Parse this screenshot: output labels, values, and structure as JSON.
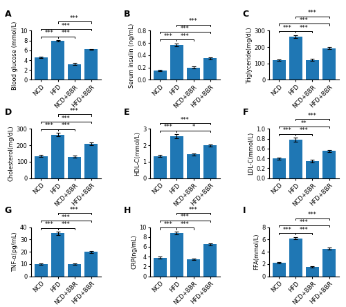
{
  "chart_data": [
    {
      "type": "bar",
      "title": "A",
      "y_label": "Blood glucose (mmol/L)",
      "categories": [
        "NCD",
        "HFD",
        "NCD+BBR",
        "HFD+BBR"
      ],
      "values": [
        4.6,
        7.9,
        3.2,
        6.2
      ],
      "errors": [
        0.15,
        0.12,
        0.18,
        0.12
      ],
      "ylim": [
        0,
        10
      ],
      "yticks": [
        0,
        2,
        4,
        6,
        8,
        10
      ],
      "grid": false,
      "annotations": [
        {
          "from": "NCD",
          "to": "HFD",
          "text": "***"
        },
        {
          "from": "HFD",
          "to": "NCD+BBR",
          "text": "***"
        },
        {
          "from": "NCD",
          "to": "HFD+BBR",
          "text": "***"
        },
        {
          "from": "HFD",
          "to": "HFD+BBR",
          "text": "***"
        }
      ]
    },
    {
      "type": "bar",
      "title": "B",
      "y_label": "Serum insulin (ng/mL)",
      "categories": [
        "NCD",
        "HFD",
        "NCD+BBR",
        "HFD+BBR"
      ],
      "values": [
        0.15,
        0.57,
        0.2,
        0.35
      ],
      "errors": [
        0.015,
        0.025,
        0.015,
        0.015
      ],
      "ylim": [
        0,
        0.8
      ],
      "yticks": [
        0.0,
        0.2,
        0.4,
        0.6,
        0.8
      ],
      "grid": false,
      "annotations": [
        {
          "from": "NCD",
          "to": "HFD",
          "text": "***"
        },
        {
          "from": "HFD",
          "to": "NCD+BBR",
          "text": "***"
        },
        {
          "from": "NCD",
          "to": "HFD+BBR",
          "text": "***"
        },
        {
          "from": "HFD",
          "to": "HFD+BBR",
          "text": "***"
        }
      ]
    },
    {
      "type": "bar",
      "title": "C",
      "y_label": "Triglyceride(mg/dL)",
      "categories": [
        "NCD",
        "HFD",
        "NCD+BBR",
        "HFD+BBR"
      ],
      "values": [
        120,
        265,
        122,
        193
      ],
      "errors": [
        5,
        8,
        6,
        7
      ],
      "ylim": [
        0,
        300
      ],
      "yticks": [
        0,
        100,
        200,
        300
      ],
      "grid": false,
      "annotations": [
        {
          "from": "NCD",
          "to": "HFD",
          "text": "***"
        },
        {
          "from": "HFD",
          "to": "NCD+BBR",
          "text": "***"
        },
        {
          "from": "NCD",
          "to": "HFD+BBR",
          "text": "***"
        },
        {
          "from": "HFD",
          "to": "HFD+BBR",
          "text": "***"
        }
      ]
    },
    {
      "type": "bar",
      "title": "D",
      "y_label": "Cholesterol(mg/dL)",
      "categories": [
        "NCD",
        "HFD",
        "NCD+BBR",
        "HFD+BBR"
      ],
      "values": [
        135,
        265,
        130,
        210
      ],
      "errors": [
        8,
        10,
        7,
        8
      ],
      "ylim": [
        0,
        300
      ],
      "yticks": [
        0,
        100,
        200,
        300
      ],
      "grid": false,
      "annotations": [
        {
          "from": "NCD",
          "to": "HFD",
          "text": "***"
        },
        {
          "from": "HFD",
          "to": "NCD+BBR",
          "text": "***"
        },
        {
          "from": "NCD",
          "to": "HFD+BBR",
          "text": "***"
        },
        {
          "from": "HFD",
          "to": "HFD+BBR",
          "text": "***"
        }
      ]
    },
    {
      "type": "bar",
      "title": "E",
      "y_label": "HDL-C(mmol/L)",
      "categories": [
        "NCD",
        "HFD",
        "NCD+BBR",
        "HFD+BBR"
      ],
      "values": [
        1.35,
        2.55,
        1.45,
        2.0
      ],
      "errors": [
        0.07,
        0.12,
        0.07,
        0.07
      ],
      "ylim": [
        0,
        3
      ],
      "yticks": [
        0,
        1,
        2,
        3
      ],
      "grid": false,
      "annotations": [
        {
          "from": "NCD",
          "to": "HFD",
          "text": "***"
        },
        {
          "from": "HFD",
          "to": "HFD+BBR",
          "text": "*"
        },
        {
          "from": "NCD",
          "to": "HFD+BBR",
          "text": "***"
        }
      ]
    },
    {
      "type": "bar",
      "title": "F",
      "y_label": "LDL-C(mmol/L)",
      "categories": [
        "NCD",
        "HFD",
        "NCD+BBR",
        "HFD+BBR"
      ],
      "values": [
        0.4,
        0.78,
        0.35,
        0.55
      ],
      "errors": [
        0.02,
        0.04,
        0.03,
        0.025
      ],
      "ylim": [
        0,
        1.0
      ],
      "yticks": [
        0.0,
        0.2,
        0.4,
        0.6,
        0.8,
        1.0
      ],
      "grid": false,
      "annotations": [
        {
          "from": "NCD",
          "to": "HFD",
          "text": "***"
        },
        {
          "from": "HFD",
          "to": "NCD+BBR",
          "text": "***"
        },
        {
          "from": "NCD",
          "to": "HFD+BBR",
          "text": "**"
        },
        {
          "from": "HFD",
          "to": "HFD+BBR",
          "text": "***"
        }
      ]
    },
    {
      "type": "bar",
      "title": "G",
      "y_label": "TNF-α(pg/mL)",
      "categories": [
        "NCD",
        "HFD",
        "NCD+BBR",
        "HFD+BBR"
      ],
      "values": [
        10,
        35,
        10,
        20
      ],
      "errors": [
        0.6,
        1.2,
        0.5,
        0.8
      ],
      "ylim": [
        0,
        40
      ],
      "yticks": [
        0,
        10,
        20,
        30,
        40
      ],
      "grid": false,
      "annotations": [
        {
          "from": "NCD",
          "to": "HFD",
          "text": "***"
        },
        {
          "from": "HFD",
          "to": "NCD+BBR",
          "text": "***"
        },
        {
          "from": "NCD",
          "to": "HFD+BBR",
          "text": "***"
        },
        {
          "from": "HFD",
          "to": "HFD+BBR",
          "text": "***"
        }
      ]
    },
    {
      "type": "bar",
      "title": "H",
      "y_label": "CRP(ng/mL)",
      "categories": [
        "NCD",
        "HFD",
        "NCD+BBR",
        "HFD+BBR"
      ],
      "values": [
        3.8,
        8.8,
        3.5,
        6.5
      ],
      "errors": [
        0.18,
        0.28,
        0.16,
        0.22
      ],
      "ylim": [
        0,
        10
      ],
      "yticks": [
        0,
        2,
        4,
        6,
        8,
        10
      ],
      "grid": false,
      "annotations": [
        {
          "from": "NCD",
          "to": "HFD",
          "text": "***"
        },
        {
          "from": "HFD",
          "to": "NCD+BBR",
          "text": "***"
        },
        {
          "from": "NCD",
          "to": "HFD+BBR",
          "text": "***"
        },
        {
          "from": "HFD",
          "to": "HFD+BBR",
          "text": "***"
        }
      ]
    },
    {
      "type": "bar",
      "title": "I",
      "y_label": "FFA(mmol/L)",
      "categories": [
        "NCD",
        "HFD",
        "NCD+BBR",
        "HFD+BBR"
      ],
      "values": [
        2.2,
        6.2,
        1.5,
        4.5
      ],
      "errors": [
        0.12,
        0.22,
        0.1,
        0.18
      ],
      "ylim": [
        0,
        8
      ],
      "yticks": [
        0,
        2,
        4,
        6,
        8
      ],
      "grid": false,
      "annotations": [
        {
          "from": "NCD",
          "to": "HFD",
          "text": "***"
        },
        {
          "from": "HFD",
          "to": "NCD+BBR",
          "text": "***"
        },
        {
          "from": "NCD",
          "to": "HFD+BBR",
          "text": "***"
        },
        {
          "from": "HFD",
          "to": "HFD+BBR",
          "text": "***"
        }
      ]
    }
  ]
}
